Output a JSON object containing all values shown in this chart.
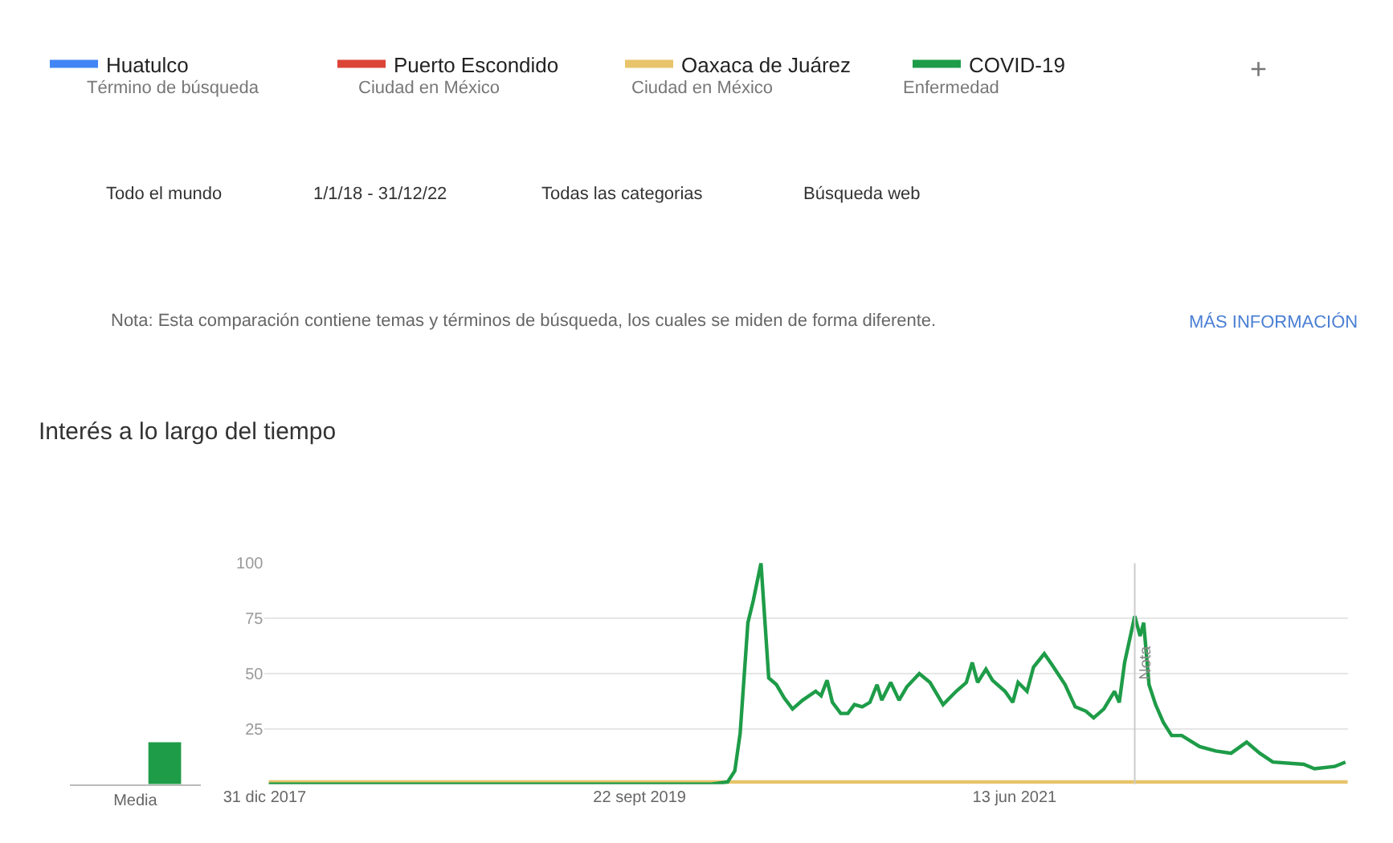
{
  "chart_data": [
    {
      "type": "line",
      "title": "Interés a lo largo del tiempo",
      "legend": "top",
      "grid": "y",
      "marker": "none",
      "line_style": "solid",
      "series": [
        {
          "name": "Huatulco",
          "color": "#4285f4",
          "values": [
            null
          ]
        },
        {
          "name": "Puerto Escondido",
          "color": "#db4437",
          "values": [
            null
          ]
        },
        {
          "name": "Oaxaca de Juárez",
          "color": "#e8c46a",
          "x": [
            "2018-01-07",
            "2022-12-25"
          ],
          "values": [
            1,
            1
          ]
        },
        {
          "name": "COVID-19",
          "color": "#1e9c48",
          "x": [
            "2018-01-07",
            "2020-01-21",
            "2020-02-17",
            "2020-02-29",
            "2020-03-09",
            "2020-03-22",
            "2020-03-31",
            "2020-04-13",
            "2020-04-26",
            "2020-05-09",
            "2020-05-22",
            "2020-06-05",
            "2020-06-22",
            "2020-07-14",
            "2020-07-23",
            "2020-08-02",
            "2020-08-11",
            "2020-08-25",
            "2020-09-06",
            "2020-09-17",
            "2020-09-30",
            "2020-10-13",
            "2020-10-25",
            "2020-11-02",
            "2020-11-17",
            "2020-12-01",
            "2020-12-14",
            "2021-01-04",
            "2021-01-22",
            "2021-02-13",
            "2021-03-07",
            "2021-03-24",
            "2021-04-03",
            "2021-04-12",
            "2021-04-26",
            "2021-05-07",
            "2021-05-28",
            "2021-06-10",
            "2021-06-19",
            "2021-07-04",
            "2021-07-15",
            "2021-08-02",
            "2021-08-15",
            "2021-09-06",
            "2021-09-23",
            "2021-10-11",
            "2021-10-24",
            "2021-11-10",
            "2021-11-28",
            "2021-12-06",
            "2021-12-15",
            "2022-01-01",
            "2022-01-10",
            "2022-01-16",
            "2022-01-25",
            "2022-02-05",
            "2022-02-18",
            "2022-03-04",
            "2022-03-21",
            "2022-04-20",
            "2022-05-17",
            "2022-06-12",
            "2022-07-08",
            "2022-07-30",
            "2022-08-21",
            "2022-10-12",
            "2022-10-30",
            "2022-12-03",
            "2022-12-21"
          ],
          "values": [
            0,
            0,
            1,
            6,
            23,
            73,
            83,
            100,
            48,
            45,
            39,
            34,
            38,
            42,
            40,
            47,
            37,
            32,
            32,
            36,
            35,
            37,
            45,
            38,
            46,
            38,
            44,
            50,
            46,
            36,
            42,
            46,
            55,
            46,
            52,
            47,
            42,
            37,
            46,
            42,
            53,
            59,
            54,
            45,
            35,
            33,
            30,
            34,
            42,
            37,
            55,
            76,
            67,
            73,
            45,
            36,
            28,
            22,
            22,
            17,
            15,
            14,
            19,
            14,
            10,
            9,
            7,
            8,
            10
          ]
        }
      ],
      "xlim": [
        "2017-12-31",
        "2022-12-25"
      ],
      "xticks": [
        {
          "value": "2017-12-31",
          "label": "31 dic 2017"
        },
        {
          "value": "2019-09-22",
          "label": "22 sept 2019"
        },
        {
          "value": "2021-06-13",
          "label": "13 jun 2021"
        }
      ],
      "ylim": [
        0,
        100
      ],
      "yticks": [
        {
          "value": 0,
          "label": null
        },
        25,
        50,
        75,
        100
      ],
      "ref_lines": [
        {
          "axis": "x",
          "value": "2022-01-01",
          "label": "Nota",
          "color": "#cccccc"
        }
      ],
      "annotations": [
        "Término de búsqueda",
        "Ciudad en México",
        "Ciudad en México",
        "Enfermedad",
        "+",
        "Todo el mundo",
        "1/1/18 - 31/12/22",
        "Todas las categorias",
        "Búsqueda web",
        "Nota: Esta comparación contiene temas y términos de búsqueda, los cuales se miden de forma diferente.",
        "MÁS INFORMACIÓN"
      ]
    },
    {
      "type": "bar",
      "categories": [
        "Media"
      ],
      "series": [
        {
          "color": "#1e9c48",
          "values": [
            19
          ]
        }
      ],
      "ylim": [
        0,
        100
      ],
      "tick_labels": "x"
    }
  ]
}
